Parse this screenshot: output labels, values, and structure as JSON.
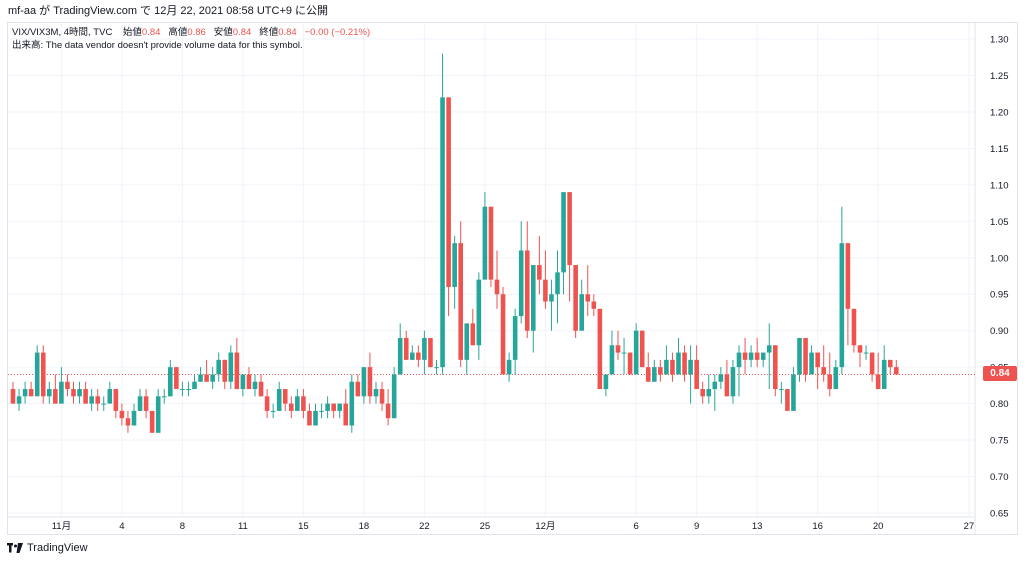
{
  "header": {
    "publish_text": "mf-aa が TradingView.com で 12月 22, 2021 08:58 UTC+9 に公開"
  },
  "legend": {
    "symbol": "VIX/VIX3M, 4時間, TVC",
    "open_label": "始値",
    "open": "0.84",
    "high_label": "高値",
    "high": "0.86",
    "low_label": "安値",
    "low": "0.84",
    "close_label": "終値",
    "close": "0.84",
    "change": "−0.00 (−0.21%)",
    "volume_note": "出来高: The data vendor doesn't provide volume data for this symbol."
  },
  "price_tag": "0.84",
  "footer": {
    "logo_text": "TradingView"
  },
  "colors": {
    "up": "#26a69a",
    "down": "#ef5350",
    "grid": "#f0f3fa",
    "axis": "#e0e3eb"
  },
  "chart_data": {
    "type": "candlestick",
    "ylim": [
      0.64,
      1.32
    ],
    "y_ticks": [
      "1.30",
      "1.25",
      "1.20",
      "1.15",
      "1.10",
      "1.05",
      "1.00",
      "0.95",
      "0.90",
      "0.85",
      "0.80",
      "0.75",
      "0.70",
      "0.65"
    ],
    "x_ticks": [
      {
        "label": "11月",
        "i": 8
      },
      {
        "label": "4",
        "i": 18
      },
      {
        "label": "8",
        "i": 28
      },
      {
        "label": "11",
        "i": 38
      },
      {
        "label": "15",
        "i": 48
      },
      {
        "label": "18",
        "i": 58
      },
      {
        "label": "22",
        "i": 68
      },
      {
        "label": "25",
        "i": 78
      },
      {
        "label": "12月",
        "i": 88
      },
      {
        "label": "6",
        "i": 103
      },
      {
        "label": "9",
        "i": 113
      },
      {
        "label": "13",
        "i": 123
      },
      {
        "label": "16",
        "i": 133
      },
      {
        "label": "20",
        "i": 143
      },
      {
        "label": "27",
        "i": 158
      }
    ],
    "last_price": 0.84,
    "candles": [
      [
        0.82,
        0.83,
        0.8,
        0.8
      ],
      [
        0.8,
        0.82,
        0.79,
        0.81
      ],
      [
        0.81,
        0.83,
        0.8,
        0.82
      ],
      [
        0.82,
        0.83,
        0.81,
        0.81
      ],
      [
        0.81,
        0.88,
        0.81,
        0.87
      ],
      [
        0.87,
        0.88,
        0.8,
        0.81
      ],
      [
        0.81,
        0.83,
        0.8,
        0.82
      ],
      [
        0.82,
        0.84,
        0.8,
        0.8
      ],
      [
        0.8,
        0.85,
        0.8,
        0.83
      ],
      [
        0.83,
        0.84,
        0.81,
        0.82
      ],
      [
        0.82,
        0.83,
        0.8,
        0.81
      ],
      [
        0.81,
        0.83,
        0.8,
        0.82
      ],
      [
        0.82,
        0.83,
        0.8,
        0.8
      ],
      [
        0.8,
        0.82,
        0.79,
        0.81
      ],
      [
        0.81,
        0.82,
        0.79,
        0.8
      ],
      [
        0.8,
        0.81,
        0.79,
        0.8
      ],
      [
        0.8,
        0.83,
        0.8,
        0.82
      ],
      [
        0.82,
        0.82,
        0.78,
        0.79
      ],
      [
        0.79,
        0.8,
        0.77,
        0.78
      ],
      [
        0.78,
        0.79,
        0.76,
        0.77
      ],
      [
        0.77,
        0.8,
        0.77,
        0.79
      ],
      [
        0.79,
        0.82,
        0.79,
        0.81
      ],
      [
        0.81,
        0.82,
        0.78,
        0.79
      ],
      [
        0.79,
        0.79,
        0.76,
        0.76
      ],
      [
        0.76,
        0.82,
        0.76,
        0.81
      ],
      [
        0.81,
        0.82,
        0.8,
        0.81
      ],
      [
        0.81,
        0.86,
        0.81,
        0.85
      ],
      [
        0.85,
        0.85,
        0.82,
        0.82
      ],
      [
        0.82,
        0.83,
        0.81,
        0.82
      ],
      [
        0.82,
        0.83,
        0.81,
        0.82
      ],
      [
        0.82,
        0.84,
        0.82,
        0.83
      ],
      [
        0.83,
        0.85,
        0.83,
        0.84
      ],
      [
        0.84,
        0.86,
        0.83,
        0.83
      ],
      [
        0.83,
        0.85,
        0.82,
        0.84
      ],
      [
        0.84,
        0.87,
        0.83,
        0.86
      ],
      [
        0.86,
        0.86,
        0.82,
        0.83
      ],
      [
        0.83,
        0.88,
        0.82,
        0.87
      ],
      [
        0.87,
        0.89,
        0.82,
        0.82
      ],
      [
        0.82,
        0.84,
        0.81,
        0.84
      ],
      [
        0.84,
        0.85,
        0.82,
        0.82
      ],
      [
        0.82,
        0.84,
        0.81,
        0.83
      ],
      [
        0.83,
        0.84,
        0.81,
        0.81
      ],
      [
        0.81,
        0.82,
        0.78,
        0.79
      ],
      [
        0.79,
        0.8,
        0.78,
        0.79
      ],
      [
        0.79,
        0.83,
        0.79,
        0.82
      ],
      [
        0.82,
        0.82,
        0.79,
        0.8
      ],
      [
        0.8,
        0.81,
        0.78,
        0.79
      ],
      [
        0.79,
        0.82,
        0.79,
        0.81
      ],
      [
        0.81,
        0.82,
        0.78,
        0.79
      ],
      [
        0.79,
        0.8,
        0.77,
        0.77
      ],
      [
        0.77,
        0.8,
        0.77,
        0.79
      ],
      [
        0.79,
        0.8,
        0.78,
        0.79
      ],
      [
        0.79,
        0.81,
        0.78,
        0.8
      ],
      [
        0.8,
        0.8,
        0.78,
        0.79
      ],
      [
        0.79,
        0.8,
        0.78,
        0.8
      ],
      [
        0.8,
        0.82,
        0.77,
        0.77
      ],
      [
        0.77,
        0.84,
        0.76,
        0.83
      ],
      [
        0.83,
        0.84,
        0.81,
        0.81
      ],
      [
        0.81,
        0.85,
        0.8,
        0.85
      ],
      [
        0.85,
        0.87,
        0.8,
        0.81
      ],
      [
        0.81,
        0.83,
        0.8,
        0.82
      ],
      [
        0.82,
        0.83,
        0.79,
        0.8
      ],
      [
        0.8,
        0.82,
        0.77,
        0.78
      ],
      [
        0.78,
        0.85,
        0.78,
        0.84
      ],
      [
        0.84,
        0.91,
        0.84,
        0.89
      ],
      [
        0.89,
        0.9,
        0.86,
        0.86
      ],
      [
        0.86,
        0.88,
        0.86,
        0.87
      ],
      [
        0.87,
        0.88,
        0.85,
        0.86
      ],
      [
        0.86,
        0.9,
        0.84,
        0.89
      ],
      [
        0.89,
        0.89,
        0.85,
        0.85
      ],
      [
        0.85,
        0.86,
        0.84,
        0.85
      ],
      [
        0.85,
        1.28,
        0.84,
        1.22
      ],
      [
        1.22,
        1.22,
        0.92,
        0.96
      ],
      [
        0.96,
        1.03,
        0.93,
        1.02
      ],
      [
        1.02,
        1.05,
        0.85,
        0.86
      ],
      [
        0.86,
        0.91,
        0.84,
        0.91
      ],
      [
        0.91,
        0.93,
        0.88,
        0.88
      ],
      [
        0.88,
        0.98,
        0.86,
        0.97
      ],
      [
        0.97,
        1.09,
        0.97,
        1.07
      ],
      [
        1.07,
        1.07,
        0.96,
        0.97
      ],
      [
        0.97,
        1.01,
        0.93,
        0.95
      ],
      [
        0.95,
        0.96,
        0.84,
        0.84
      ],
      [
        0.84,
        0.87,
        0.83,
        0.86
      ],
      [
        0.86,
        0.93,
        0.84,
        0.92
      ],
      [
        0.92,
        1.05,
        0.91,
        1.01
      ],
      [
        1.01,
        1.05,
        0.89,
        0.9
      ],
      [
        0.9,
        0.99,
        0.87,
        0.99
      ],
      [
        0.99,
        1.03,
        0.95,
        0.97
      ],
      [
        0.97,
        1.01,
        0.93,
        0.94
      ],
      [
        0.94,
        0.97,
        0.9,
        0.95
      ],
      [
        0.95,
        1.01,
        0.91,
        0.98
      ],
      [
        0.98,
        1.09,
        0.95,
        1.09
      ],
      [
        1.09,
        1.09,
        0.94,
        0.99
      ],
      [
        0.99,
        0.99,
        0.89,
        0.9
      ],
      [
        0.9,
        0.97,
        0.9,
        0.95
      ],
      [
        0.95,
        0.99,
        0.92,
        0.94
      ],
      [
        0.94,
        0.95,
        0.92,
        0.93
      ],
      [
        0.93,
        0.93,
        0.82,
        0.82
      ],
      [
        0.82,
        0.84,
        0.81,
        0.84
      ],
      [
        0.84,
        0.9,
        0.84,
        0.88
      ],
      [
        0.88,
        0.9,
        0.86,
        0.87
      ],
      [
        0.87,
        0.89,
        0.84,
        0.87
      ],
      [
        0.87,
        0.87,
        0.84,
        0.84
      ],
      [
        0.84,
        0.91,
        0.84,
        0.9
      ],
      [
        0.9,
        0.9,
        0.85,
        0.85
      ],
      [
        0.85,
        0.87,
        0.83,
        0.83
      ],
      [
        0.83,
        0.86,
        0.83,
        0.85
      ],
      [
        0.85,
        0.86,
        0.83,
        0.84
      ],
      [
        0.84,
        0.88,
        0.84,
        0.86
      ],
      [
        0.86,
        0.87,
        0.83,
        0.84
      ],
      [
        0.84,
        0.89,
        0.84,
        0.87
      ],
      [
        0.87,
        0.88,
        0.83,
        0.84
      ],
      [
        0.84,
        0.88,
        0.8,
        0.86
      ],
      [
        0.86,
        0.88,
        0.82,
        0.82
      ],
      [
        0.82,
        0.83,
        0.8,
        0.81
      ],
      [
        0.81,
        0.84,
        0.8,
        0.82
      ],
      [
        0.82,
        0.84,
        0.79,
        0.83
      ],
      [
        0.83,
        0.85,
        0.82,
        0.84
      ],
      [
        0.84,
        0.86,
        0.81,
        0.81
      ],
      [
        0.81,
        0.86,
        0.8,
        0.85
      ],
      [
        0.85,
        0.88,
        0.81,
        0.87
      ],
      [
        0.87,
        0.89,
        0.84,
        0.86
      ],
      [
        0.86,
        0.88,
        0.85,
        0.87
      ],
      [
        0.87,
        0.89,
        0.85,
        0.86
      ],
      [
        0.86,
        0.87,
        0.85,
        0.87
      ],
      [
        0.87,
        0.91,
        0.82,
        0.88
      ],
      [
        0.88,
        0.88,
        0.81,
        0.82
      ],
      [
        0.82,
        0.83,
        0.8,
        0.82
      ],
      [
        0.82,
        0.82,
        0.79,
        0.79
      ],
      [
        0.79,
        0.85,
        0.79,
        0.84
      ],
      [
        0.84,
        0.89,
        0.83,
        0.89
      ],
      [
        0.89,
        0.89,
        0.83,
        0.84
      ],
      [
        0.84,
        0.88,
        0.84,
        0.87
      ],
      [
        0.87,
        0.87,
        0.82,
        0.85
      ],
      [
        0.85,
        0.88,
        0.83,
        0.84
      ],
      [
        0.84,
        0.87,
        0.81,
        0.82
      ],
      [
        0.82,
        0.86,
        0.82,
        0.85
      ],
      [
        0.85,
        1.07,
        0.84,
        1.02
      ],
      [
        1.02,
        1.02,
        0.88,
        0.93
      ],
      [
        0.93,
        0.93,
        0.87,
        0.88
      ],
      [
        0.88,
        0.88,
        0.85,
        0.87
      ],
      [
        0.87,
        0.88,
        0.86,
        0.87
      ],
      [
        0.87,
        0.87,
        0.83,
        0.84
      ],
      [
        0.84,
        0.87,
        0.82,
        0.82
      ],
      [
        0.82,
        0.88,
        0.82,
        0.86
      ],
      [
        0.86,
        0.86,
        0.84,
        0.85
      ],
      [
        0.85,
        0.86,
        0.84,
        0.84
      ]
    ]
  }
}
